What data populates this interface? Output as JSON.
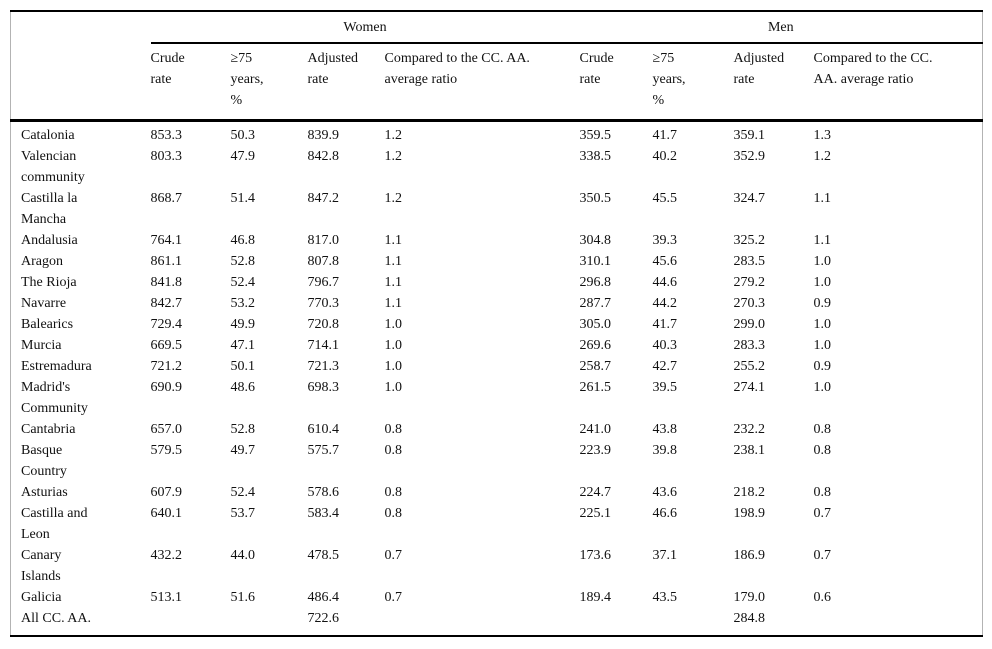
{
  "table": {
    "group_headers": {
      "women": "Women",
      "men": "Men"
    },
    "sub_headers": {
      "region": "",
      "crude": "Crude rate",
      "over75": "≥75 years, %",
      "adjusted": "Adjusted rate",
      "compared": "Compared to the CC. AA. average ratio"
    },
    "rows": [
      [
        "Catalonia",
        "853.3",
        "50.3",
        "839.9",
        "1.2",
        "359.5",
        "41.7",
        "359.1",
        "1.3"
      ],
      [
        "Valencian community",
        "803.3",
        "47.9",
        "842.8",
        "1.2",
        "338.5",
        "40.2",
        "352.9",
        "1.2"
      ],
      [
        "Castilla la Mancha",
        "868.7",
        "51.4",
        "847.2",
        "1.2",
        "350.5",
        "45.5",
        "324.7",
        "1.1"
      ],
      [
        "Andalusia",
        "764.1",
        "46.8",
        "817.0",
        "1.1",
        "304.8",
        "39.3",
        "325.2",
        "1.1"
      ],
      [
        "Aragon",
        "861.1",
        "52.8",
        "807.8",
        "1.1",
        "310.1",
        "45.6",
        "283.5",
        "1.0"
      ],
      [
        "The Rioja",
        "841.8",
        "52.4",
        "796.7",
        "1.1",
        "296.8",
        "44.6",
        "279.2",
        "1.0"
      ],
      [
        "Navarre",
        "842.7",
        "53.2",
        "770.3",
        "1.1",
        "287.7",
        "44.2",
        "270.3",
        "0.9"
      ],
      [
        "Balearics",
        "729.4",
        "49.9",
        "720.8",
        "1.0",
        "305.0",
        "41.7",
        "299.0",
        "1.0"
      ],
      [
        "Murcia",
        "669.5",
        "47.1",
        "714.1",
        "1.0",
        "269.6",
        "40.3",
        "283.3",
        "1.0"
      ],
      [
        "Estremadura",
        "721.2",
        "50.1",
        "721.3",
        "1.0",
        "258.7",
        "42.7",
        "255.2",
        "0.9"
      ],
      [
        "Madrid's Community",
        "690.9",
        "48.6",
        "698.3",
        "1.0",
        "261.5",
        "39.5",
        "274.1",
        "1.0"
      ],
      [
        "Cantabria",
        "657.0",
        "52.8",
        "610.4",
        "0.8",
        "241.0",
        "43.8",
        "232.2",
        "0.8"
      ],
      [
        "Basque Country",
        "579.5",
        "49.7",
        "575.7",
        "0.8",
        "223.9",
        "39.8",
        "238.1",
        "0.8"
      ],
      [
        "Asturias",
        "607.9",
        "52.4",
        "578.6",
        "0.8",
        "224.7",
        "43.6",
        "218.2",
        "0.8"
      ],
      [
        "Castilla and Leon",
        "640.1",
        "53.7",
        "583.4",
        "0.8",
        "225.1",
        "46.6",
        "198.9",
        "0.7"
      ],
      [
        "Canary Islands",
        "432.2",
        "44.0",
        "478.5",
        "0.7",
        "173.6",
        "37.1",
        "186.9",
        "0.7"
      ],
      [
        "Galicia",
        "513.1",
        "51.6",
        "486.4",
        "0.7",
        "189.4",
        "43.5",
        "179.0",
        "0.6"
      ],
      [
        "All CC. AA.",
        "",
        "",
        "722.6",
        "",
        "",
        "",
        "284.8",
        ""
      ]
    ]
  }
}
